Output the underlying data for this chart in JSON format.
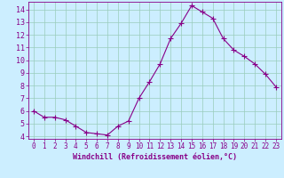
{
  "x": [
    0,
    1,
    2,
    3,
    4,
    5,
    6,
    7,
    8,
    9,
    10,
    11,
    12,
    13,
    14,
    15,
    16,
    17,
    18,
    19,
    20,
    21,
    22,
    23
  ],
  "y": [
    6.0,
    5.5,
    5.5,
    5.3,
    4.8,
    4.3,
    4.2,
    4.1,
    4.8,
    5.2,
    7.0,
    8.3,
    9.7,
    11.7,
    12.9,
    14.3,
    13.8,
    13.3,
    11.7,
    10.8,
    10.3,
    9.7,
    8.9,
    7.9
  ],
  "line_color": "#880088",
  "marker": "+",
  "marker_size": 4,
  "bg_color": "#cceeff",
  "grid_color": "#99ccbb",
  "xlabel": "Windchill (Refroidissement éolien,°C)",
  "ylim": [
    3.8,
    14.6
  ],
  "xlim": [
    -0.5,
    23.5
  ],
  "yticks": [
    4,
    5,
    6,
    7,
    8,
    9,
    10,
    11,
    12,
    13,
    14
  ],
  "xticks": [
    0,
    1,
    2,
    3,
    4,
    5,
    6,
    7,
    8,
    9,
    10,
    11,
    12,
    13,
    14,
    15,
    16,
    17,
    18,
    19,
    20,
    21,
    22,
    23
  ],
  "tick_color": "#880088",
  "label_color": "#880088",
  "tick_fontsize": 5.5,
  "xlabel_fontsize": 6.0
}
